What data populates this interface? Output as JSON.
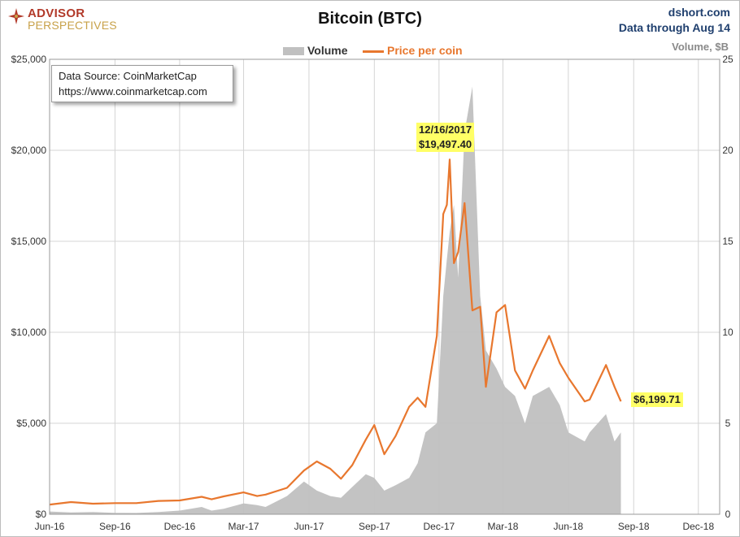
{
  "logo": {
    "line1": "ADVISOR",
    "line2": "PERSPECTIVES"
  },
  "header": {
    "title": "Bitcoin (BTC)",
    "site": "dshort.com",
    "data_through": "Data through Aug 14"
  },
  "legend": {
    "volume": "Volume",
    "price": "Price per coin"
  },
  "source": {
    "line1": "Data Source: CoinMarketCap",
    "line2": "https://www.coinmarketcap.com"
  },
  "annotations": {
    "peak_date": "12/16/2017",
    "peak_value": "$19,497.40",
    "last_value": "$6,199.71"
  },
  "colors": {
    "price": "#e8772e",
    "volume": "#c0c0c0",
    "highlight": "#ffff66",
    "site": "#1f3f6e"
  },
  "chart_data": {
    "type": "line",
    "y_left_label": "",
    "y_right_label": "Volume, $B",
    "y_left_ticks": [
      "$0",
      "$5,000",
      "$10,000",
      "$15,000",
      "$20,000",
      "$25,000"
    ],
    "y_right_ticks": [
      "0",
      "5",
      "10",
      "15",
      "20",
      "25"
    ],
    "x_ticks": [
      "Jun-16",
      "Sep-16",
      "Dec-16",
      "Mar-17",
      "Jun-17",
      "Sep-17",
      "Dec-17",
      "Mar-18",
      "Jun-18",
      "Sep-18",
      "Dec-18"
    ],
    "ylim_left": [
      0,
      25000
    ],
    "ylim_right": [
      0,
      25
    ],
    "grid": true,
    "legend_position": "top-center",
    "x": [
      "2016-06-01",
      "2016-07-01",
      "2016-08-01",
      "2016-09-01",
      "2016-10-01",
      "2016-11-01",
      "2016-12-01",
      "2017-01-01",
      "2017-01-15",
      "2017-02-01",
      "2017-03-01",
      "2017-03-20",
      "2017-04-01",
      "2017-05-01",
      "2017-05-25",
      "2017-06-12",
      "2017-07-01",
      "2017-07-16",
      "2017-08-01",
      "2017-08-20",
      "2017-09-01",
      "2017-09-15",
      "2017-10-01",
      "2017-10-20",
      "2017-11-01",
      "2017-11-12",
      "2017-11-28",
      "2017-12-07",
      "2017-12-12",
      "2017-12-16",
      "2017-12-22",
      "2017-12-28",
      "2018-01-06",
      "2018-01-17",
      "2018-01-28",
      "2018-02-05",
      "2018-02-20",
      "2018-03-04",
      "2018-03-18",
      "2018-04-01",
      "2018-04-12",
      "2018-05-05",
      "2018-05-20",
      "2018-06-01",
      "2018-06-24",
      "2018-07-01",
      "2018-07-24",
      "2018-08-05",
      "2018-08-14"
    ],
    "series": [
      {
        "name": "Price per coin",
        "axis": "left",
        "values": [
          530,
          670,
          580,
          610,
          610,
          730,
          760,
          960,
          820,
          980,
          1200,
          1000,
          1080,
          1450,
          2400,
          2900,
          2500,
          1950,
          2700,
          4100,
          4900,
          3300,
          4300,
          5900,
          6400,
          5900,
          9800,
          16500,
          17000,
          19497,
          13800,
          14400,
          17100,
          11200,
          11400,
          7000,
          11100,
          11500,
          7900,
          6900,
          7900,
          9800,
          8300,
          7500,
          6200,
          6300,
          8200,
          7000,
          6199.71
        ]
      },
      {
        "name": "Volume",
        "axis": "right",
        "values": [
          0.15,
          0.1,
          0.12,
          0.08,
          0.07,
          0.12,
          0.2,
          0.4,
          0.2,
          0.3,
          0.6,
          0.5,
          0.4,
          1.0,
          1.8,
          1.3,
          1.0,
          0.9,
          1.5,
          2.2,
          2.0,
          1.3,
          1.6,
          2.0,
          2.8,
          4.5,
          5.0,
          12.0,
          14.0,
          15.5,
          17.0,
          13.0,
          21.0,
          23.5,
          12.0,
          9.0,
          8.0,
          7.0,
          6.5,
          5.0,
          6.5,
          7.0,
          6.0,
          4.5,
          4.0,
          4.5,
          5.5,
          4.0,
          4.5
        ]
      }
    ]
  }
}
